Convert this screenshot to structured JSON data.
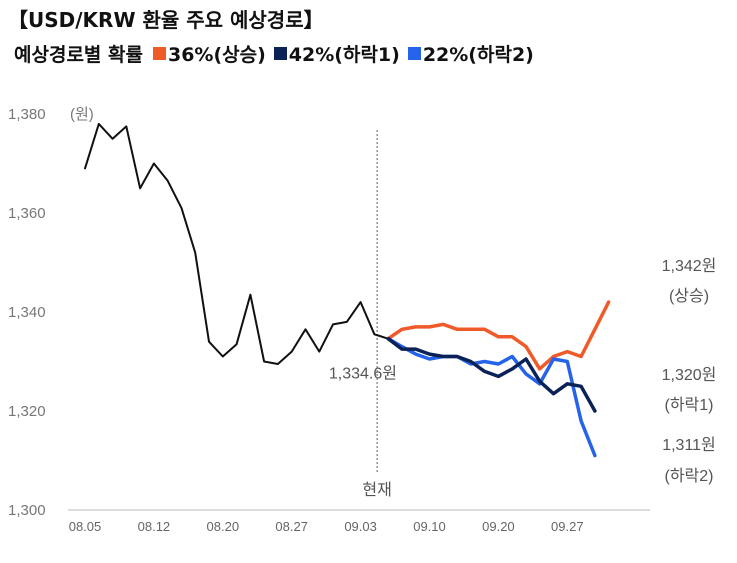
{
  "header": {
    "title": "【USD/KRW 환율 주요 예상경로】",
    "legend_label": "예상경로별 확률"
  },
  "chart_data": {
    "type": "line",
    "title": "【USD/KRW 환율 주요 예상경로】",
    "ylabel": "(원)",
    "ylim": [
      1300,
      1380
    ],
    "yticks": [
      "1,380",
      "1,360",
      "1,340",
      "1,320",
      "1,300"
    ],
    "ytick_values": [
      1380,
      1360,
      1340,
      1320,
      1300
    ],
    "xticks": [
      "08.05",
      "08.12",
      "08.20",
      "08.27",
      "09.03",
      "09.10",
      "09.20",
      "09.27"
    ],
    "xtick_index": [
      0,
      5,
      10,
      15,
      20,
      25,
      30,
      35
    ],
    "grid": false,
    "divider": {
      "label": "현재",
      "index": 21.2
    },
    "current": {
      "value_label": "1,334.6원",
      "value": 1334.6
    },
    "series": [
      {
        "name": "",
        "color": "#111111",
        "start_index": 0,
        "values": [
          1369,
          1378,
          1375,
          1377.5,
          1365,
          1370,
          1366.5,
          1361,
          1352,
          1334,
          1331,
          1333.5,
          1343.5,
          1330,
          1329.5,
          1332,
          1336.5,
          1332,
          1337.5,
          1338,
          1342,
          1335.5,
          1334.6
        ]
      },
      {
        "name": "36%(상승)",
        "color": "#f05a28",
        "start_index": 22,
        "values": [
          1334.6,
          1336.5,
          1337,
          1337,
          1337.5,
          1336.5,
          1336.5,
          1336.5,
          1335,
          1335,
          1333,
          1328.5,
          1331,
          1332,
          1331,
          1336.5,
          1342
        ]
      },
      {
        "name": "42%(하락1)",
        "color": "#0b2257",
        "start_index": 22,
        "values": [
          1334.6,
          1332.5,
          1332.5,
          1331.5,
          1331,
          1331,
          1330,
          1328,
          1327,
          1328.5,
          1330.5,
          1326,
          1323.5,
          1325.5,
          1325,
          1320
        ]
      },
      {
        "name": "22%(하락2)",
        "color": "#2563eb",
        "start_index": 22,
        "values": [
          1334.6,
          1333,
          1331.5,
          1330.5,
          1331,
          1331,
          1329.5,
          1330,
          1329.5,
          1331,
          1327.5,
          1325.5,
          1330.5,
          1330,
          1318,
          1311
        ]
      }
    ],
    "end_labels": [
      {
        "value": "1,342원",
        "label": "(상승)"
      },
      {
        "value": "1,320원",
        "label": "(하락1)"
      },
      {
        "value": "1,311원",
        "label": "(하락2)"
      }
    ]
  }
}
